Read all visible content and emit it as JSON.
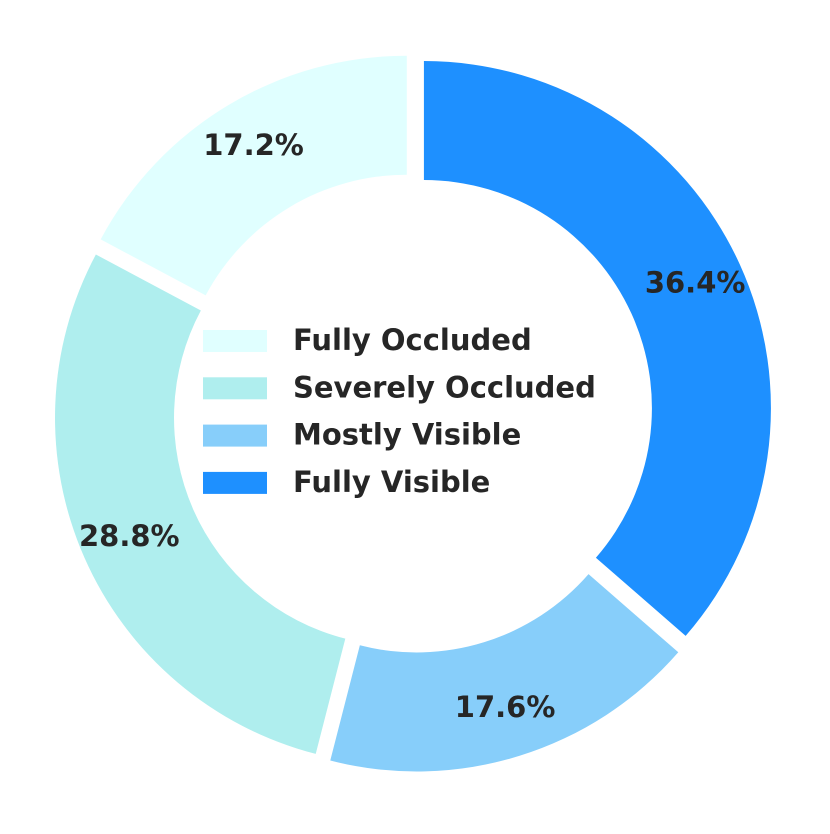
{
  "chart_data": {
    "type": "donut",
    "categories": [
      "Fully Occluded",
      "Severely Occluded",
      "Mostly Visible",
      "Fully Visible"
    ],
    "values": [
      17.2,
      28.8,
      17.6,
      36.4
    ],
    "value_labels": [
      "17.2%",
      "28.8%",
      "17.6%",
      "36.4%"
    ],
    "colors": [
      "#e0ffff",
      "#afeeee",
      "#87cefa",
      "#1e90ff"
    ],
    "start_angle": 90,
    "legend": "center"
  }
}
